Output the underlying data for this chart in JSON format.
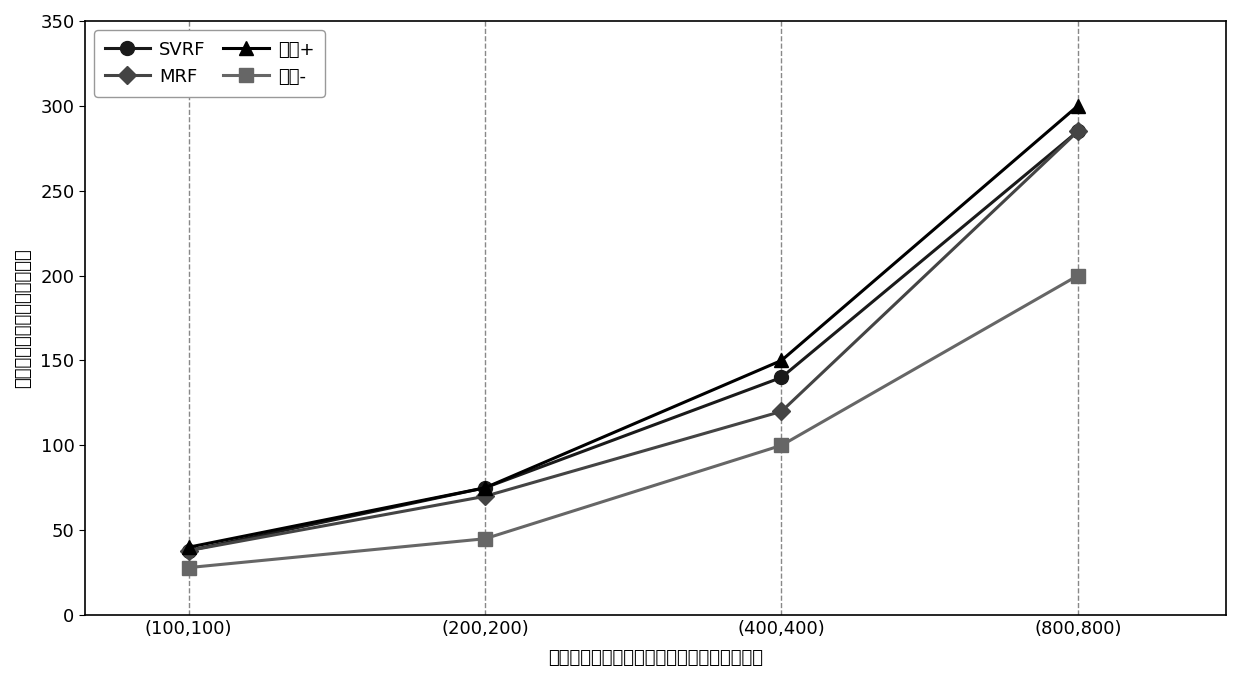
{
  "x_labels": [
    "(100,100)",
    "(200,200)",
    "(400,400)",
    "(800,800)"
  ],
  "x_values": [
    1,
    2,
    3,
    4
  ],
  "series": [
    {
      "name": "SVRF",
      "values": [
        38,
        75,
        140,
        285
      ],
      "color": "#1a1a1a",
      "marker": "o",
      "linewidth": 2.2,
      "markersize": 10
    },
    {
      "name": "MRF",
      "values": [
        38,
        70,
        120,
        285
      ],
      "color": "#444444",
      "marker": "D",
      "linewidth": 2.2,
      "markersize": 9
    },
    {
      "name": "界値+",
      "values": [
        40,
        75,
        150,
        300
      ],
      "color": "#000000",
      "marker": "^",
      "linewidth": 2.2,
      "markersize": 10
    },
    {
      "name": "界値-",
      "values": [
        28,
        45,
        100,
        200
      ],
      "color": "#666666",
      "marker": "s",
      "linewidth": 2.2,
      "markersize": 10
    }
  ],
  "ylabel": "云渲染任务消耗的服务器总数",
  "xlabel": "（非真实云渲染任务数，真实云渲染任务数）",
  "ylim": [
    0,
    350
  ],
  "yticks": [
    0,
    50,
    100,
    150,
    200,
    250,
    300,
    350
  ],
  "axis_fontsize": 13,
  "tick_fontsize": 13,
  "legend_fontsize": 13,
  "background_color": "#ffffff",
  "grid_color": "#888888",
  "legend_cols": 2,
  "xlim_left": 0.65,
  "xlim_right": 4.5
}
